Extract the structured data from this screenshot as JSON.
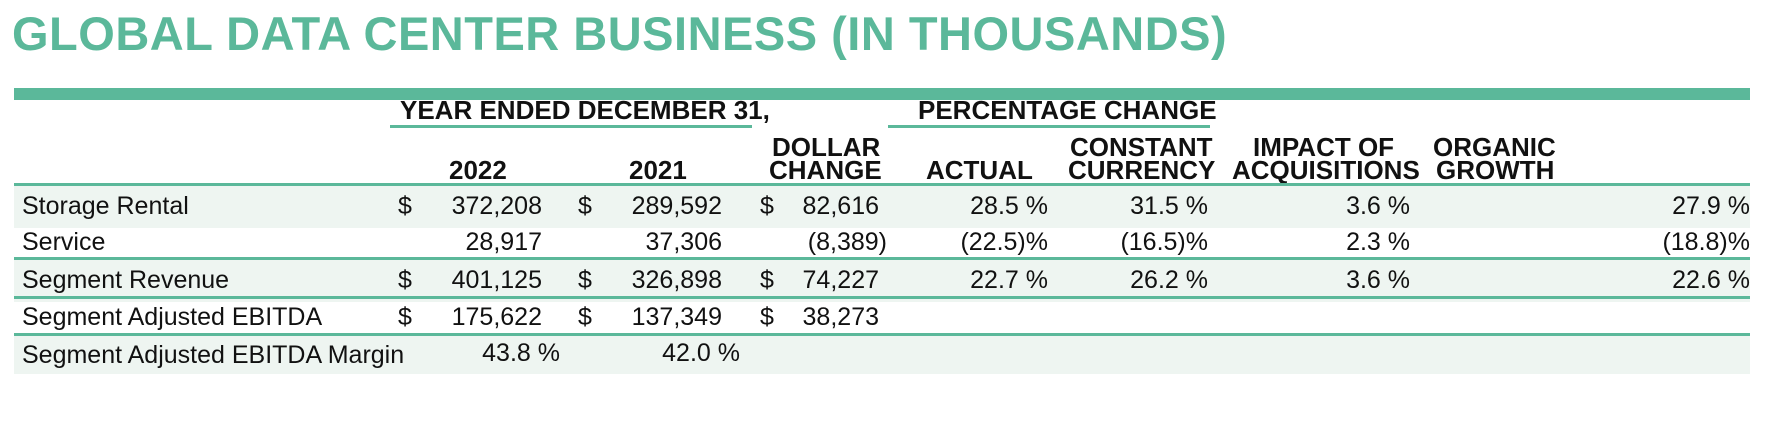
{
  "title": "GLOBAL DATA CENTER BUSINESS (IN THOUSANDS)",
  "headers": {
    "group_year": "YEAR ENDED DECEMBER 31,",
    "group_pct": "PERCENTAGE CHANGE",
    "y2022": "2022",
    "y2021": "2021",
    "dollar_1": "DOLLAR",
    "dollar_2": "CHANGE",
    "actual": "ACTUAL",
    "constant_1": "CONSTANT",
    "constant_2": "CURRENCY",
    "impact_1": "IMPACT OF",
    "impact_2": "ACQUISITIONS",
    "organic_1": "ORGANIC",
    "organic_2": "GROWTH"
  },
  "rows": [
    {
      "label": "Storage Rental",
      "s1": "$",
      "v2022": "372,208",
      "s2": "$",
      "v2021": "289,592",
      "s3": "$",
      "dollar": "82,616",
      "actual": "28.5 %",
      "constant": "31.5 %",
      "impact": "3.6 %",
      "organic": "27.9 %"
    },
    {
      "label": "Service",
      "s1": "",
      "v2022": "28,917",
      "s2": "",
      "v2021": "37,306",
      "s3": "",
      "dollar": "(8,389)",
      "actual": "(22.5)%",
      "constant": "(16.5)%",
      "impact": "2.3 %",
      "organic": "(18.8)%"
    },
    {
      "label": "Segment Revenue",
      "s1": "$",
      "v2022": "401,125",
      "s2": "$",
      "v2021": "326,898",
      "s3": "$",
      "dollar": "74,227",
      "actual": "22.7 %",
      "constant": "26.2 %",
      "impact": "3.6 %",
      "organic": "22.6 %"
    },
    {
      "label": "Segment Adjusted EBITDA",
      "s1": "$",
      "v2022": "175,622",
      "s2": "$",
      "v2021": "137,349",
      "s3": "$",
      "dollar": "38,273",
      "actual": "",
      "constant": "",
      "impact": "",
      "organic": ""
    },
    {
      "label": "Segment Adjusted EBITDA Margin",
      "s1": "",
      "v2022": "43.8 %",
      "s2": "",
      "v2021": "42.0 %",
      "s3": "",
      "dollar": "",
      "actual": "",
      "constant": "",
      "impact": "",
      "organic": ""
    }
  ]
}
